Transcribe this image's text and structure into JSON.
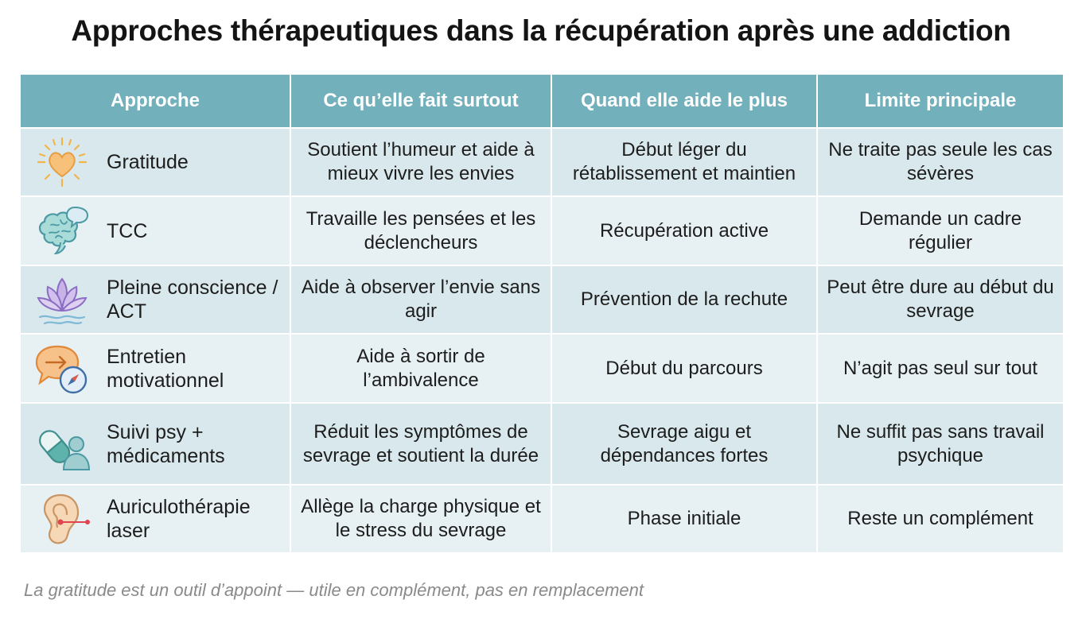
{
  "title": "Approches thérapeutiques dans la récupération après une addiction",
  "table": {
    "headers": [
      "Approche",
      "Ce qu’elle fait surtout",
      "Quand elle aide le plus",
      "Limite principale"
    ],
    "rows": [
      {
        "icon": "heart-sun-icon",
        "approach": "Gratitude",
        "does": "Soutient l’humeur et aide à mieux vivre les envies",
        "when": "Début léger du rétablissement et maintien",
        "limit": "Ne traite pas seule les cas sévères"
      },
      {
        "icon": "brain-speech-icon",
        "approach": "TCC",
        "does": "Travaille les pensées et les déclencheurs",
        "when": "Récupération active",
        "limit": "Demande un cadre régulier"
      },
      {
        "icon": "lotus-icon",
        "approach": "Pleine conscience / ACT",
        "does": "Aide à observer l’envie sans agir",
        "when": "Prévention de la rechute",
        "limit": "Peut être dure au début du sevrage"
      },
      {
        "icon": "speech-compass-icon",
        "approach": "Entretien motivationnel",
        "does": "Aide à sortir de l’ambivalence",
        "when": "Début du parcours",
        "limit": "N’agit pas seul sur tout"
      },
      {
        "icon": "pill-person-icon",
        "approach": "Suivi psy + médicaments",
        "does": "Réduit les symptômes de sevrage et soutient la durée",
        "when": "Sevrage aigu et dépendances fortes",
        "limit": "Ne suffit pas sans travail psychique"
      },
      {
        "icon": "ear-laser-icon",
        "approach": "Auriculothérapie laser",
        "does": "Allège la charge physique et le stress du sevrage",
        "when": "Phase initiale",
        "limit": "Reste un complément"
      }
    ]
  },
  "footnote": "La gratitude est un outil d’appoint — utile en complément, pas en remplacement"
}
